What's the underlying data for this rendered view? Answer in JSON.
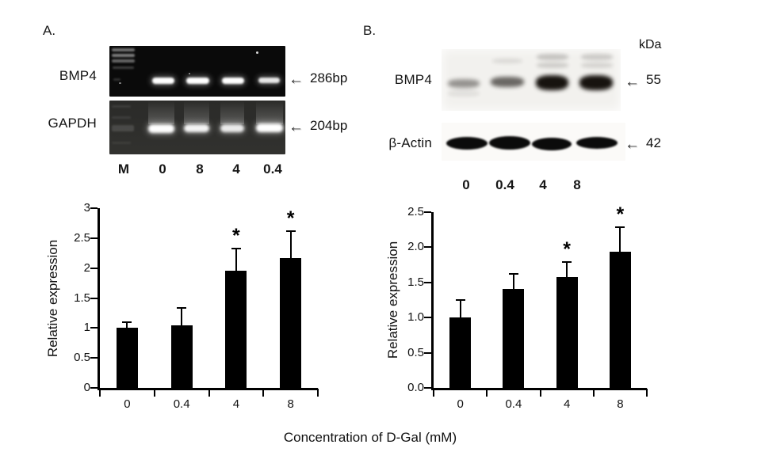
{
  "figure": {
    "arrow_glyph": "←",
    "shared_xlabel": "Concentration of D-Gal (mM)",
    "panel_a": {
      "label": "A.",
      "gel_rows": [
        {
          "label": "BMP4",
          "size_label": "286bp",
          "band_intensities": [
            1,
            1,
            1,
            0.9
          ]
        },
        {
          "label": "GAPDH",
          "size_label": "204bp",
          "band_intensities": [
            1,
            0.95,
            0.9,
            1
          ]
        }
      ],
      "lane_labels": [
        "M",
        "0",
        "8",
        "4",
        "0.4"
      ]
    },
    "panel_b": {
      "label": "B.",
      "unit_label": "kDa",
      "blot_rows": [
        {
          "label": "BMP4",
          "size_label": "55",
          "band_intensities": [
            0.42,
            0.62,
            1,
            1
          ]
        },
        {
          "label": "β-Actin",
          "size_label": "42",
          "band_intensities": [
            1,
            1,
            1,
            1
          ]
        }
      ],
      "lane_labels": [
        "0",
        "0.4",
        "4",
        "8"
      ]
    }
  },
  "chart_data": [
    {
      "type": "bar",
      "panel": "A",
      "categories": [
        "0",
        "0.4",
        "4",
        "8"
      ],
      "values": [
        1.0,
        1.05,
        1.95,
        2.17
      ],
      "errors": [
        0.1,
        0.28,
        0.38,
        0.45
      ],
      "significance": [
        "",
        "",
        "*",
        "*"
      ],
      "ylabel": "Relative expression",
      "xlabel": "Concentration of D-Gal (mM)",
      "ylim": [
        0,
        3
      ],
      "yticks": [
        0,
        0.5,
        1,
        1.5,
        2,
        2.5,
        3
      ],
      "ytick_labels": [
        "0",
        "0.5",
        "1",
        "1.5",
        "2",
        "2.5",
        "3"
      ],
      "bar_color": "#000000",
      "grid": false,
      "legend": false
    },
    {
      "type": "bar",
      "panel": "B",
      "categories": [
        "0",
        "0.4",
        "4",
        "8"
      ],
      "values": [
        1.0,
        1.41,
        1.58,
        1.94
      ],
      "errors": [
        0.25,
        0.21,
        0.21,
        0.35
      ],
      "significance": [
        "",
        "",
        "*",
        "*"
      ],
      "ylabel": "Relative expression",
      "xlabel": "Concentration of D-Gal (mM)",
      "ylim": [
        0,
        2.5
      ],
      "yticks": [
        0,
        0.5,
        1,
        1.5,
        2,
        2.5
      ],
      "ytick_labels": [
        "0.0",
        "0.5",
        "1.0",
        "1.5",
        "2.0",
        "2.5"
      ],
      "bar_color": "#000000",
      "grid": false,
      "legend": false
    }
  ]
}
